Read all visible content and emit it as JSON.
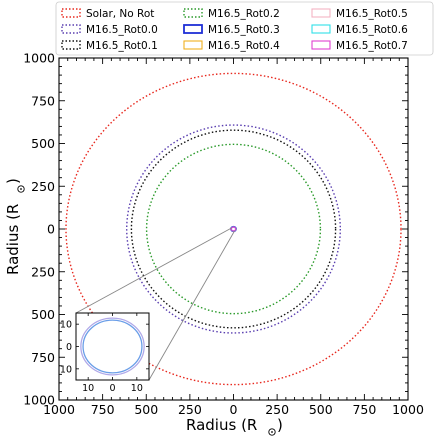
{
  "chart_data": {
    "type": "scatter",
    "xlabel": "Radius (R",
    "ylabel": "Radius (R",
    "label_suffix": ")",
    "xlim": [
      1000,
      -1000
    ],
    "ylim": [
      -1000,
      1000
    ],
    "x_ticks": [
      1000,
      750,
      500,
      250,
      0,
      -250,
      -500,
      -750,
      -1000
    ],
    "x_tick_labels": [
      "1000",
      "750",
      "500",
      "250",
      "0",
      "250",
      "500",
      "750",
      "1000"
    ],
    "y_ticks": [
      1000,
      750,
      500,
      250,
      0,
      -250,
      -500,
      -750,
      -1000
    ],
    "y_tick_labels": [
      "1000",
      "750",
      "500",
      "250",
      "0",
      "250",
      "500",
      "750",
      "1000"
    ],
    "grid": false,
    "legend_position": "top",
    "series": [
      {
        "name": "Solar, No Rot",
        "color": "#e8281e",
        "style": "dotted",
        "rx": 960,
        "ry": 910
      },
      {
        "name": "M16.5_Rot0.0",
        "color": "#5a3fb0",
        "style": "dotted",
        "rx": 612,
        "ry": 608
      },
      {
        "name": "M16.5_Rot0.1",
        "color": "#111111",
        "style": "dotted",
        "rx": 585,
        "ry": 578
      },
      {
        "name": "M16.5_Rot0.2",
        "color": "#2a9a2a",
        "style": "dotted",
        "rx": 498,
        "ry": 495
      },
      {
        "name": "M16.5_Rot0.3",
        "color": "#1f2fd6",
        "style": "solid",
        "rx": 14,
        "ry": 13
      },
      {
        "name": "M16.5_Rot0.4",
        "color": "#f0b020",
        "style": "solid",
        "rx": 12.8,
        "ry": 12.3
      },
      {
        "name": "M16.5_Rot0.5",
        "color": "#f4b3c4",
        "style": "solid",
        "rx": 12.4,
        "ry": 12
      },
      {
        "name": "M16.5_Rot0.6",
        "color": "#30e0e8",
        "style": "solid",
        "rx": 12.2,
        "ry": 11.8
      },
      {
        "name": "M16.5_Rot0.7",
        "color": "#e040d0",
        "style": "solid",
        "rx": 12,
        "ry": 11.6
      }
    ],
    "inset": {
      "xlim": [
        15,
        -15
      ],
      "ylim": [
        -15,
        15
      ],
      "x_ticks": [
        10,
        0,
        -10
      ],
      "x_tick_labels": [
        "10",
        "0",
        "10"
      ],
      "y_ticks": [
        10,
        0,
        -10
      ],
      "y_tick_labels": [
        "10",
        "0",
        "10"
      ],
      "circles": [
        {
          "color": "#b0a8e8",
          "rx": 13,
          "ry": 12.7
        },
        {
          "color": "#6a9ee8",
          "rx": 12.1,
          "ry": 11.8
        }
      ]
    }
  }
}
